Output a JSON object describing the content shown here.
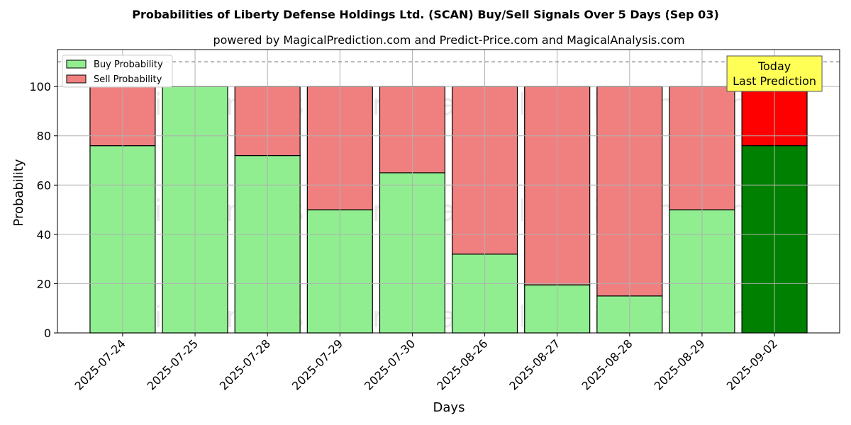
{
  "chart_data": {
    "type": "bar",
    "stacked": true,
    "title": "Probabilities of Liberty Defense Holdings Ltd. (SCAN) Buy/Sell Signals Over 5 Days (Sep 03)",
    "subtitle": "powered by MagicalPrediction.com and Predict-Price.com and MagicalAnalysis.com",
    "xlabel": "Days",
    "ylabel": "Probability",
    "ylim": [
      0,
      115
    ],
    "yticks": [
      0,
      20,
      40,
      60,
      80,
      100
    ],
    "grid": true,
    "legend_position": "top-left",
    "reference_line": 110,
    "categories": [
      "2025-07-24",
      "2025-07-25",
      "2025-07-28",
      "2025-07-29",
      "2025-07-30",
      "2025-08-26",
      "2025-08-27",
      "2025-08-28",
      "2025-08-29",
      "2025-09-02"
    ],
    "series": [
      {
        "name": "Buy Probability",
        "color": "#90ee90",
        "values": [
          76,
          100,
          72,
          50,
          65,
          32,
          19.5,
          15,
          50,
          76
        ]
      },
      {
        "name": "Sell Probability",
        "color": "#f08080",
        "values": [
          24,
          0,
          28,
          50,
          35,
          68,
          80.5,
          85,
          50,
          24
        ]
      }
    ],
    "highlight": {
      "index": 9,
      "buy_color": "#008000",
      "sell_color": "#ff0000"
    },
    "annotation": {
      "lines": [
        "Today",
        "Last Prediction"
      ],
      "background": "#ffff55"
    },
    "watermarks": [
      "MagicalAnalysis.com",
      "MagicalPrediction.com"
    ]
  }
}
